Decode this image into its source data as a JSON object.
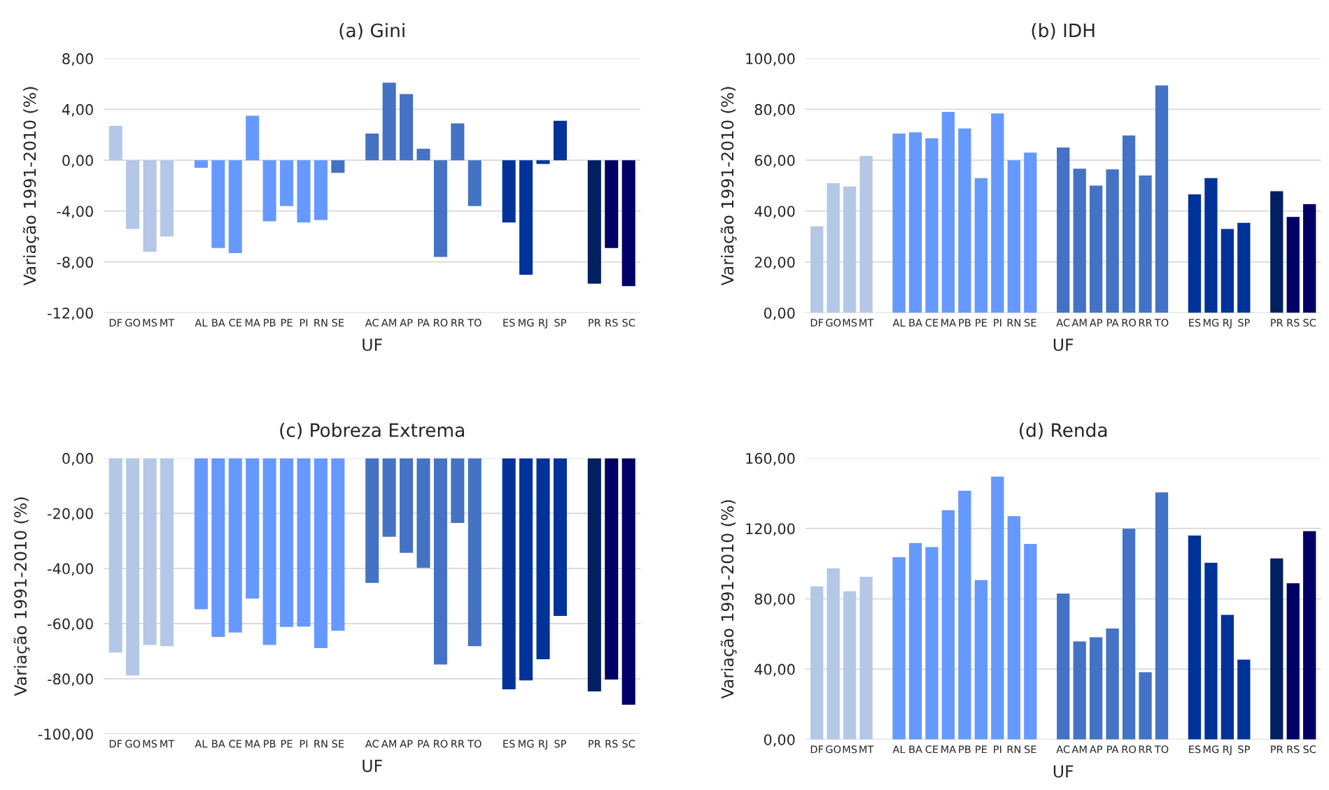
{
  "chart_data": [
    {
      "type": "bar",
      "title": "(a) Gini",
      "xlabel": "UF",
      "ylabel": "Variação 1991-2010 (%)",
      "categories": [
        "DF",
        "GO",
        "MS",
        "MT",
        null,
        "AL",
        "BA",
        "CE",
        "MA",
        "PB",
        "PE",
        "PI",
        "RN",
        "SE",
        null,
        "AC",
        "AM",
        "AP",
        "PA",
        "RO",
        "RR",
        "TO",
        null,
        "ES",
        "MG",
        "RJ",
        "SP",
        null,
        "PR",
        "RS",
        "SC"
      ],
      "values": [
        2.7,
        -5.4,
        -7.2,
        -6.0,
        null,
        -0.6,
        -6.9,
        -7.3,
        3.5,
        -4.8,
        -3.6,
        -4.9,
        -4.7,
        -1.0,
        null,
        2.1,
        6.1,
        5.2,
        0.9,
        -7.6,
        2.9,
        -3.6,
        null,
        -4.9,
        -9.0,
        -0.3,
        3.1,
        null,
        -9.7,
        -6.9,
        -9.9
      ],
      "colors": [
        "#b4c7e7",
        "#b4c7e7",
        "#b4c7e7",
        "#b4c7e7",
        null,
        "#6699ff",
        "#6699ff",
        "#6699ff",
        "#6699ff",
        "#6699ff",
        "#6699ff",
        "#6699ff",
        "#6699ff",
        "#4472c4",
        null,
        "#4472c4",
        "#4472c4",
        "#4472c4",
        "#4472c4",
        "#4472c4",
        "#4472c4",
        "#4472c4",
        null,
        "#003399",
        "#003399",
        "#003399",
        "#003399",
        null,
        "#002060",
        "#000066",
        "#000066"
      ],
      "ylim": [
        -12,
        8
      ],
      "yticks": [
        {
          "value": -12,
          "label": "-12,00"
        },
        {
          "value": -8,
          "label": "-8,00"
        },
        {
          "value": -4,
          "label": "-4,00"
        },
        {
          "value": 0,
          "label": "0,00"
        },
        {
          "value": 4,
          "label": "4,00"
        },
        {
          "value": 8,
          "label": "8,00"
        }
      ],
      "grid": "y"
    },
    {
      "type": "bar",
      "title": "(b) IDH",
      "xlabel": "UF",
      "ylabel": "Variação 1991-2010 (%)",
      "categories": [
        "DF",
        "GO",
        "MS",
        "MT",
        null,
        "AL",
        "BA",
        "CE",
        "MA",
        "PB",
        "PE",
        "PI",
        "RN",
        "SE",
        null,
        "AC",
        "AM",
        "AP",
        "PA",
        "RO",
        "RR",
        "TO",
        null,
        "ES",
        "MG",
        "RJ",
        "SP",
        null,
        "PR",
        "RS",
        "SC"
      ],
      "values": [
        34,
        51,
        49.7,
        61.7,
        null,
        70.5,
        71,
        68.6,
        79,
        72.5,
        53,
        78.4,
        60,
        63,
        null,
        65,
        56.7,
        50,
        56.4,
        69.7,
        54,
        89.4,
        null,
        46.6,
        53,
        33,
        35.4,
        null,
        47.8,
        37.7,
        42.7
      ],
      "colors": [
        "#b4c7e7",
        "#b4c7e7",
        "#b4c7e7",
        "#b4c7e7",
        null,
        "#6699ff",
        "#6699ff",
        "#6699ff",
        "#6699ff",
        "#6699ff",
        "#6699ff",
        "#6699ff",
        "#6699ff",
        "#6699ff",
        null,
        "#4472c4",
        "#4472c4",
        "#4472c4",
        "#4472c4",
        "#4472c4",
        "#4472c4",
        "#4472c4",
        null,
        "#003399",
        "#003399",
        "#003399",
        "#003399",
        null,
        "#002060",
        "#000066",
        "#000066"
      ],
      "ylim": [
        0,
        100
      ],
      "yticks": [
        {
          "value": 0,
          "label": "0,00"
        },
        {
          "value": 20,
          "label": "20,00"
        },
        {
          "value": 40,
          "label": "40,00"
        },
        {
          "value": 60,
          "label": "60,00"
        },
        {
          "value": 80,
          "label": "80,00"
        },
        {
          "value": 100,
          "label": "100,00"
        }
      ],
      "grid": "y"
    },
    {
      "type": "bar",
      "title": "(c) Pobreza Extrema",
      "xlabel": "UF",
      "ylabel": "Variação 1991-2010 (%)",
      "categories": [
        "DF",
        "GO",
        "MS",
        "MT",
        null,
        "AL",
        "BA",
        "CE",
        "MA",
        "PB",
        "PE",
        "PI",
        "RN",
        "SE",
        null,
        "AC",
        "AM",
        "AP",
        "PA",
        "RO",
        "RR",
        "TO",
        null,
        "ES",
        "MG",
        "RJ",
        "SP",
        null,
        "PR",
        "RS",
        "SC"
      ],
      "values": [
        -70.5,
        -78.8,
        -67.7,
        -68.2,
        null,
        -54.8,
        -64.8,
        -63.2,
        -50.9,
        -67.7,
        -61.2,
        -61.1,
        -68.9,
        -62.6,
        null,
        -45.2,
        -28.5,
        -34.3,
        -39.8,
        -74.8,
        -23.5,
        -68.2,
        null,
        -83.8,
        -80.6,
        -72.9,
        -57.2,
        null,
        -84.6,
        -80.3,
        -89.4
      ],
      "colors": [
        "#b4c7e7",
        "#b4c7e7",
        "#b4c7e7",
        "#b4c7e7",
        null,
        "#6699ff",
        "#6699ff",
        "#6699ff",
        "#6699ff",
        "#6699ff",
        "#6699ff",
        "#6699ff",
        "#6699ff",
        "#6699ff",
        null,
        "#4472c4",
        "#4472c4",
        "#4472c4",
        "#4472c4",
        "#4472c4",
        "#4472c4",
        "#4472c4",
        null,
        "#003399",
        "#003399",
        "#003399",
        "#003399",
        null,
        "#002060",
        "#000066",
        "#000066"
      ],
      "ylim": [
        -100,
        0
      ],
      "yticks": [
        {
          "value": -100,
          "label": "-100,00"
        },
        {
          "value": -80,
          "label": "-80,00"
        },
        {
          "value": -60,
          "label": "-60,00"
        },
        {
          "value": -40,
          "label": "-40,00"
        },
        {
          "value": -20,
          "label": "-20,00"
        },
        {
          "value": 0,
          "label": "0,00"
        }
      ],
      "grid": "y"
    },
    {
      "type": "bar",
      "title": "(d) Renda",
      "xlabel": "UF",
      "ylabel": "Variação 1991-2010 (%)",
      "categories": [
        "DF",
        "GO",
        "MS",
        "MT",
        null,
        "AL",
        "BA",
        "CE",
        "MA",
        "PB",
        "PE",
        "PI",
        "RN",
        "SE",
        null,
        "AC",
        "AM",
        "AP",
        "PA",
        "RO",
        "RR",
        "TO",
        null,
        "ES",
        "MG",
        "RJ",
        "SP",
        null,
        "PR",
        "RS",
        "SC"
      ],
      "values": [
        87.1,
        97.3,
        84.3,
        92.5,
        null,
        103.7,
        111.7,
        109.4,
        130.4,
        141.5,
        90.7,
        149.5,
        127,
        111.2,
        null,
        83,
        55.8,
        58.1,
        63.1,
        119.9,
        38.3,
        140.6,
        null,
        116,
        100.5,
        70.9,
        45.4,
        null,
        103,
        88.9,
        118.5
      ],
      "colors": [
        "#b4c7e7",
        "#b4c7e7",
        "#b4c7e7",
        "#b4c7e7",
        null,
        "#6699ff",
        "#6699ff",
        "#6699ff",
        "#6699ff",
        "#6699ff",
        "#6699ff",
        "#6699ff",
        "#6699ff",
        "#6699ff",
        null,
        "#4472c4",
        "#4472c4",
        "#4472c4",
        "#4472c4",
        "#4472c4",
        "#4472c4",
        "#4472c4",
        null,
        "#003399",
        "#003399",
        "#003399",
        "#003399",
        null,
        "#002060",
        "#000066",
        "#000066"
      ],
      "ylim": [
        0,
        160
      ],
      "yticks": [
        {
          "value": 0,
          "label": "0,00"
        },
        {
          "value": 40,
          "label": "40,00"
        },
        {
          "value": 80,
          "label": "80,00"
        },
        {
          "value": 120,
          "label": "120,00"
        },
        {
          "value": 160,
          "label": "160,00"
        }
      ],
      "grid": "y"
    }
  ]
}
